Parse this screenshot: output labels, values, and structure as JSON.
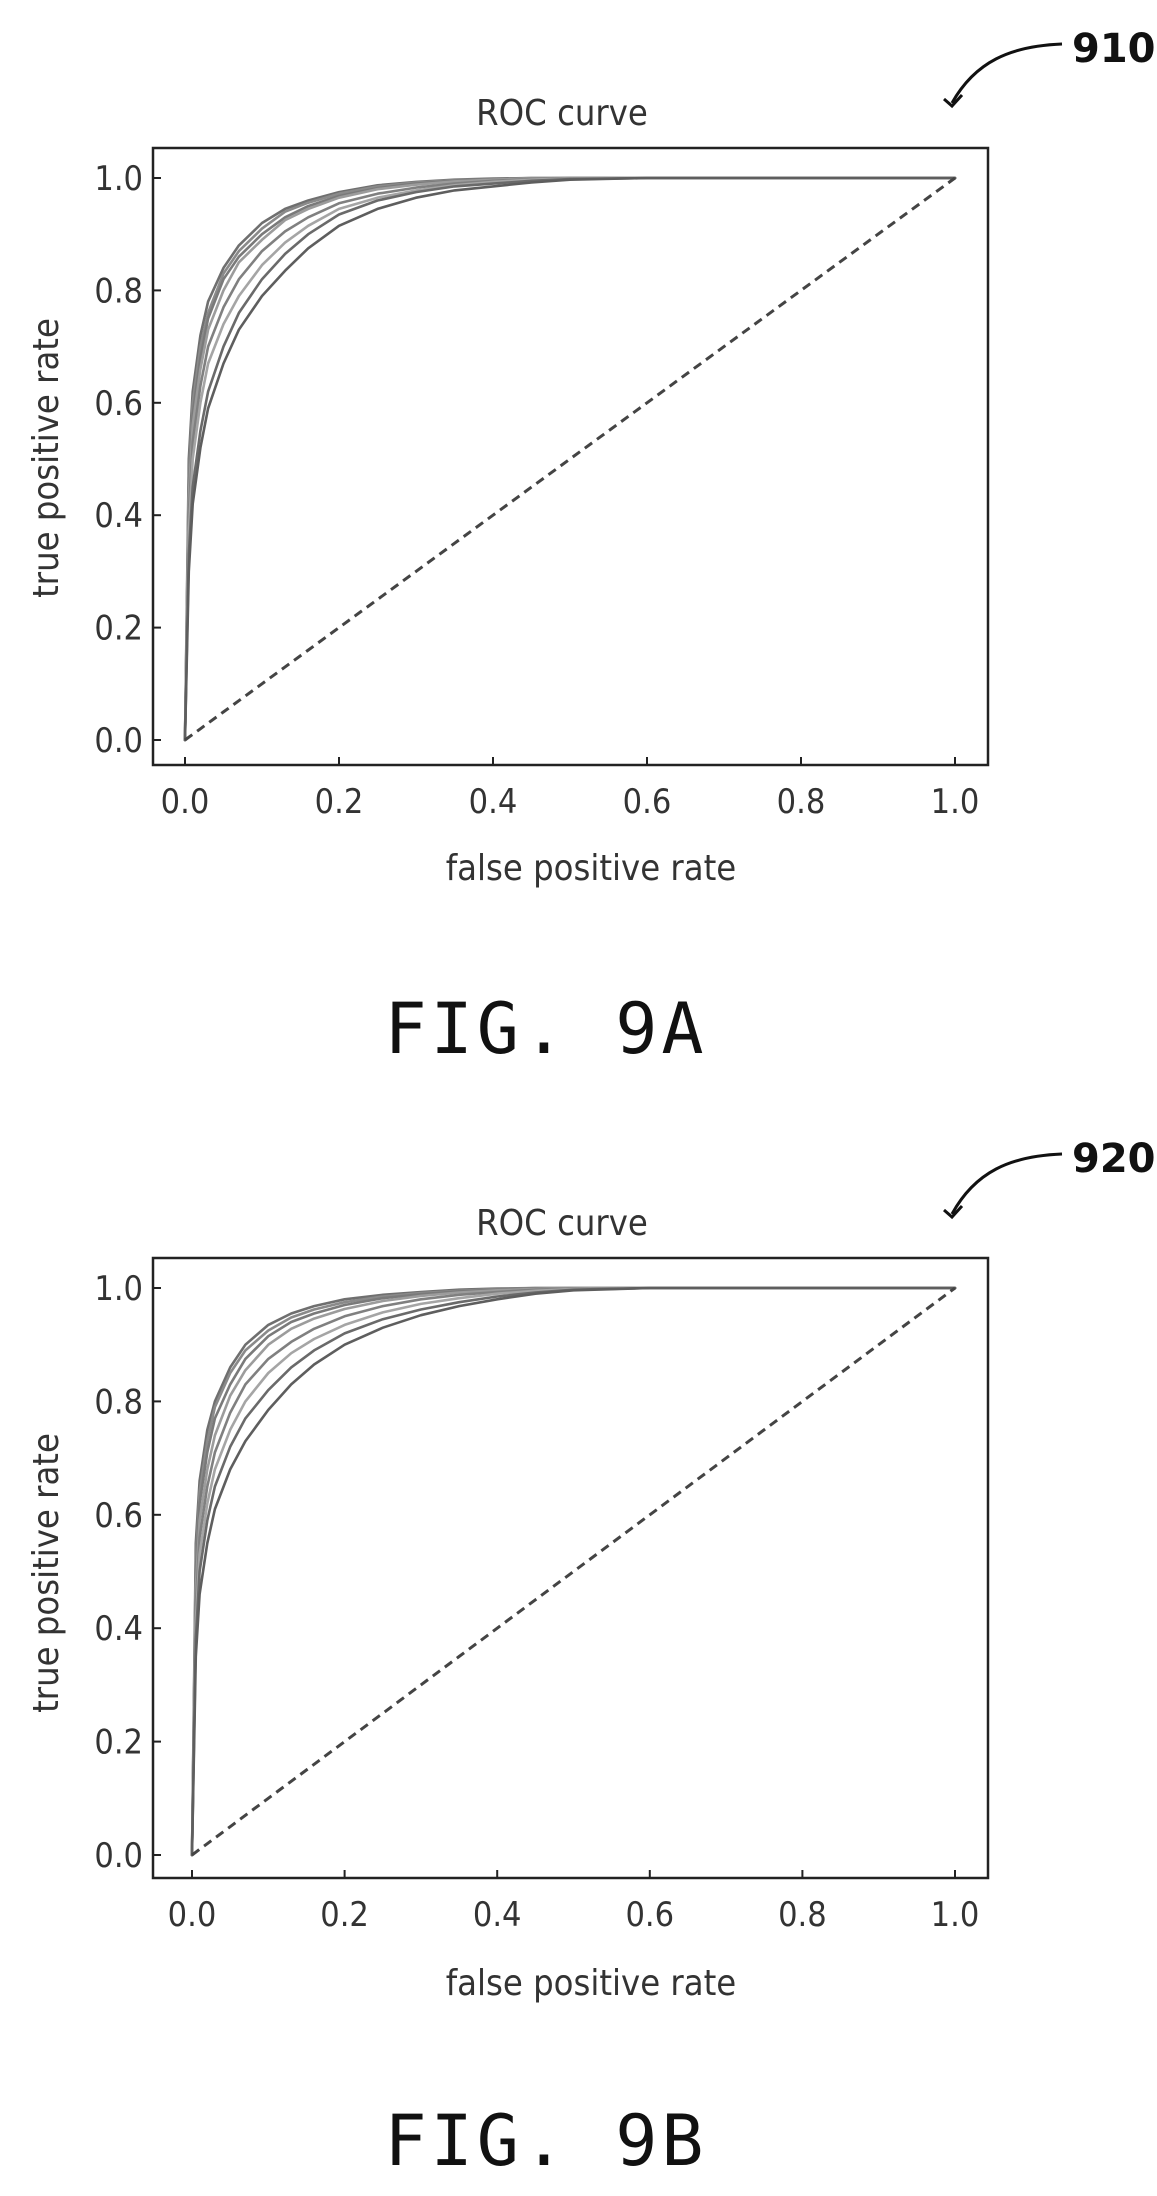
{
  "figures": [
    {
      "reference": "910",
      "caption": "FIG. 9A",
      "chart_data": {
        "type": "line",
        "title": "ROC curve",
        "xlabel": "false positive rate",
        "ylabel": "true positive rate",
        "xlim": [
          0.0,
          1.0
        ],
        "ylim": [
          0.0,
          1.0
        ],
        "xticks": [
          "0.0",
          "0.2",
          "0.4",
          "0.6",
          "0.8",
          "1.0"
        ],
        "yticks": [
          "0.0",
          "0.2",
          "0.4",
          "0.6",
          "0.8",
          "1.0"
        ],
        "grid": false,
        "legend": "none",
        "x": [
          0.0,
          0.005,
          0.01,
          0.02,
          0.03,
          0.05,
          0.07,
          0.1,
          0.13,
          0.16,
          0.2,
          0.25,
          0.3,
          0.35,
          0.4,
          0.45,
          0.5,
          0.6,
          0.7,
          0.8,
          0.9,
          1.0
        ],
        "series": [
          {
            "values": [
              0.0,
              0.5,
              0.62,
              0.72,
              0.78,
              0.84,
              0.88,
              0.92,
              0.945,
              0.96,
              0.975,
              0.987,
              0.993,
              0.997,
              0.999,
              1.0,
              1.0,
              1.0,
              1.0,
              1.0,
              1.0,
              1.0
            ]
          },
          {
            "values": [
              0.0,
              0.47,
              0.6,
              0.7,
              0.76,
              0.83,
              0.87,
              0.91,
              0.94,
              0.956,
              0.972,
              0.985,
              0.992,
              0.996,
              0.998,
              1.0,
              1.0,
              1.0,
              1.0,
              1.0,
              1.0,
              1.0
            ]
          },
          {
            "values": [
              0.0,
              0.45,
              0.58,
              0.68,
              0.75,
              0.82,
              0.86,
              0.9,
              0.93,
              0.95,
              0.968,
              0.982,
              0.99,
              0.995,
              0.998,
              0.999,
              1.0,
              1.0,
              1.0,
              1.0,
              1.0,
              1.0
            ]
          },
          {
            "values": [
              0.0,
              0.43,
              0.56,
              0.66,
              0.73,
              0.8,
              0.85,
              0.89,
              0.925,
              0.945,
              0.965,
              0.98,
              0.988,
              0.994,
              0.997,
              0.999,
              1.0,
              1.0,
              1.0,
              1.0,
              1.0,
              1.0
            ]
          },
          {
            "values": [
              0.0,
              0.4,
              0.53,
              0.63,
              0.7,
              0.77,
              0.82,
              0.87,
              0.905,
              0.93,
              0.955,
              0.972,
              0.983,
              0.99,
              0.995,
              0.998,
              1.0,
              1.0,
              1.0,
              1.0,
              1.0,
              1.0
            ]
          },
          {
            "values": [
              0.0,
              0.37,
              0.5,
              0.6,
              0.67,
              0.74,
              0.79,
              0.845,
              0.885,
              0.915,
              0.945,
              0.965,
              0.978,
              0.987,
              0.993,
              0.997,
              0.999,
              1.0,
              1.0,
              1.0,
              1.0,
              1.0
            ]
          },
          {
            "values": [
              0.0,
              0.33,
              0.45,
              0.55,
              0.62,
              0.7,
              0.76,
              0.82,
              0.865,
              0.9,
              0.935,
              0.96,
              0.975,
              0.985,
              0.99,
              0.995,
              0.998,
              1.0,
              1.0,
              1.0,
              1.0,
              1.0
            ]
          },
          {
            "values": [
              0.0,
              0.3,
              0.42,
              0.52,
              0.59,
              0.67,
              0.73,
              0.79,
              0.835,
              0.875,
              0.915,
              0.945,
              0.965,
              0.978,
              0.985,
              0.992,
              0.997,
              1.0,
              1.0,
              1.0,
              1.0,
              1.0
            ]
          },
          {
            "values": [
              0.0,
              0.005,
              0.01,
              0.02,
              0.03,
              0.05,
              0.07,
              0.1,
              0.13,
              0.16,
              0.2,
              0.25,
              0.3,
              0.35,
              0.4,
              0.45,
              0.5,
              0.6,
              0.7,
              0.8,
              0.9,
              1.0
            ]
          }
        ]
      }
    },
    {
      "reference": "920",
      "caption": "FIG. 9B",
      "chart_data": {
        "type": "line",
        "title": "ROC curve",
        "xlabel": "false positive rate",
        "ylabel": "true positive rate",
        "xlim": [
          0.0,
          1.0
        ],
        "ylim": [
          0.0,
          1.0
        ],
        "xticks": [
          "0.0",
          "0.2",
          "0.4",
          "0.6",
          "0.8",
          "1.0"
        ],
        "yticks": [
          "0.0",
          "0.2",
          "0.4",
          "0.6",
          "0.8",
          "1.0"
        ],
        "grid": false,
        "legend": "none",
        "x": [
          0.0,
          0.005,
          0.01,
          0.02,
          0.03,
          0.05,
          0.07,
          0.1,
          0.13,
          0.16,
          0.2,
          0.25,
          0.3,
          0.35,
          0.4,
          0.45,
          0.5,
          0.6,
          0.7,
          0.8,
          0.9,
          1.0
        ],
        "series": [
          {
            "values": [
              0.0,
              0.55,
              0.66,
              0.75,
              0.8,
              0.86,
              0.9,
              0.935,
              0.955,
              0.968,
              0.98,
              0.988,
              0.993,
              0.997,
              0.999,
              1.0,
              1.0,
              1.0,
              1.0,
              1.0,
              1.0,
              1.0
            ]
          },
          {
            "values": [
              0.0,
              0.52,
              0.64,
              0.73,
              0.79,
              0.85,
              0.89,
              0.925,
              0.948,
              0.962,
              0.975,
              0.985,
              0.991,
              0.995,
              0.998,
              1.0,
              1.0,
              1.0,
              1.0,
              1.0,
              1.0,
              1.0
            ]
          },
          {
            "values": [
              0.0,
              0.5,
              0.62,
              0.71,
              0.77,
              0.83,
              0.875,
              0.915,
              0.94,
              0.955,
              0.97,
              0.982,
              0.989,
              0.994,
              0.997,
              0.999,
              1.0,
              1.0,
              1.0,
              1.0,
              1.0,
              1.0
            ]
          },
          {
            "values": [
              0.0,
              0.47,
              0.59,
              0.68,
              0.74,
              0.81,
              0.855,
              0.9,
              0.928,
              0.946,
              0.963,
              0.977,
              0.986,
              0.992,
              0.996,
              0.998,
              1.0,
              1.0,
              1.0,
              1.0,
              1.0,
              1.0
            ]
          },
          {
            "values": [
              0.0,
              0.44,
              0.56,
              0.65,
              0.71,
              0.78,
              0.83,
              0.875,
              0.905,
              0.928,
              0.95,
              0.968,
              0.98,
              0.988,
              0.993,
              0.997,
              0.999,
              1.0,
              1.0,
              1.0,
              1.0,
              1.0
            ]
          },
          {
            "values": [
              0.0,
              0.41,
              0.53,
              0.62,
              0.68,
              0.75,
              0.8,
              0.85,
              0.885,
              0.91,
              0.935,
              0.957,
              0.972,
              0.982,
              0.99,
              0.995,
              0.998,
              1.0,
              1.0,
              1.0,
              1.0,
              1.0
            ]
          },
          {
            "values": [
              0.0,
              0.38,
              0.5,
              0.59,
              0.65,
              0.72,
              0.77,
              0.82,
              0.86,
              0.89,
              0.92,
              0.945,
              0.962,
              0.975,
              0.985,
              0.992,
              0.997,
              1.0,
              1.0,
              1.0,
              1.0,
              1.0
            ]
          },
          {
            "values": [
              0.0,
              0.35,
              0.46,
              0.55,
              0.61,
              0.68,
              0.73,
              0.785,
              0.83,
              0.865,
              0.9,
              0.93,
              0.952,
              0.968,
              0.98,
              0.99,
              0.996,
              1.0,
              1.0,
              1.0,
              1.0,
              1.0
            ]
          },
          {
            "values": [
              0.0,
              0.005,
              0.01,
              0.02,
              0.03,
              0.05,
              0.07,
              0.1,
              0.13,
              0.16,
              0.2,
              0.25,
              0.3,
              0.35,
              0.4,
              0.45,
              0.5,
              0.6,
              0.7,
              0.8,
              0.9,
              1.0
            ]
          }
        ]
      }
    }
  ]
}
